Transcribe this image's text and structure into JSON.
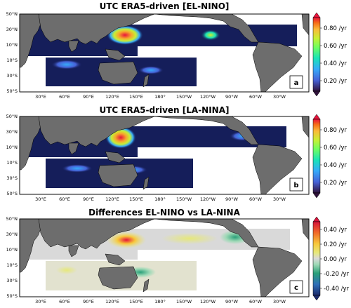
{
  "panels": [
    {
      "title": "UTC ERA5-driven [EL-NINO]",
      "letter": "a",
      "colorbar_ticks": [
        "0.80 /yr",
        "0.60 /yr",
        "0.40 /yr",
        "0.20 /yr"
      ],
      "colormap": "turbo-sequential"
    },
    {
      "title": "UTC ERA5-driven [LA-NINA]",
      "letter": "b",
      "colorbar_ticks": [
        "0.80 /yr",
        "0.60 /yr",
        "0.40 /yr",
        "0.20 /yr"
      ],
      "colormap": "turbo-sequential"
    },
    {
      "title": "Differences EL-NINO vs LA-NINA",
      "letter": "c",
      "colorbar_ticks": [
        "0.40 /yr",
        "0.20 /yr",
        "0.00 /yr",
        "-0.20 /yr",
        "-0.40 /yr"
      ],
      "colormap": "diverging"
    }
  ],
  "lat_labels": [
    "50°N",
    "30°N",
    "10°N",
    "10°S",
    "30°S",
    "50°S"
  ],
  "lon_labels": [
    "30°E",
    "60°E",
    "90°E",
    "120°E",
    "150°E",
    "180°",
    "150°W",
    "120°W",
    "90°W",
    "60°W",
    "30°W"
  ],
  "colors": {
    "land": "#6d6d6d",
    "ocean_bg": "#ffffff",
    "sequential_base": "#151e5a",
    "diverging_neutral": "#d9d9d9",
    "hot": "#e8133c",
    "cool": "#2aa079"
  }
}
